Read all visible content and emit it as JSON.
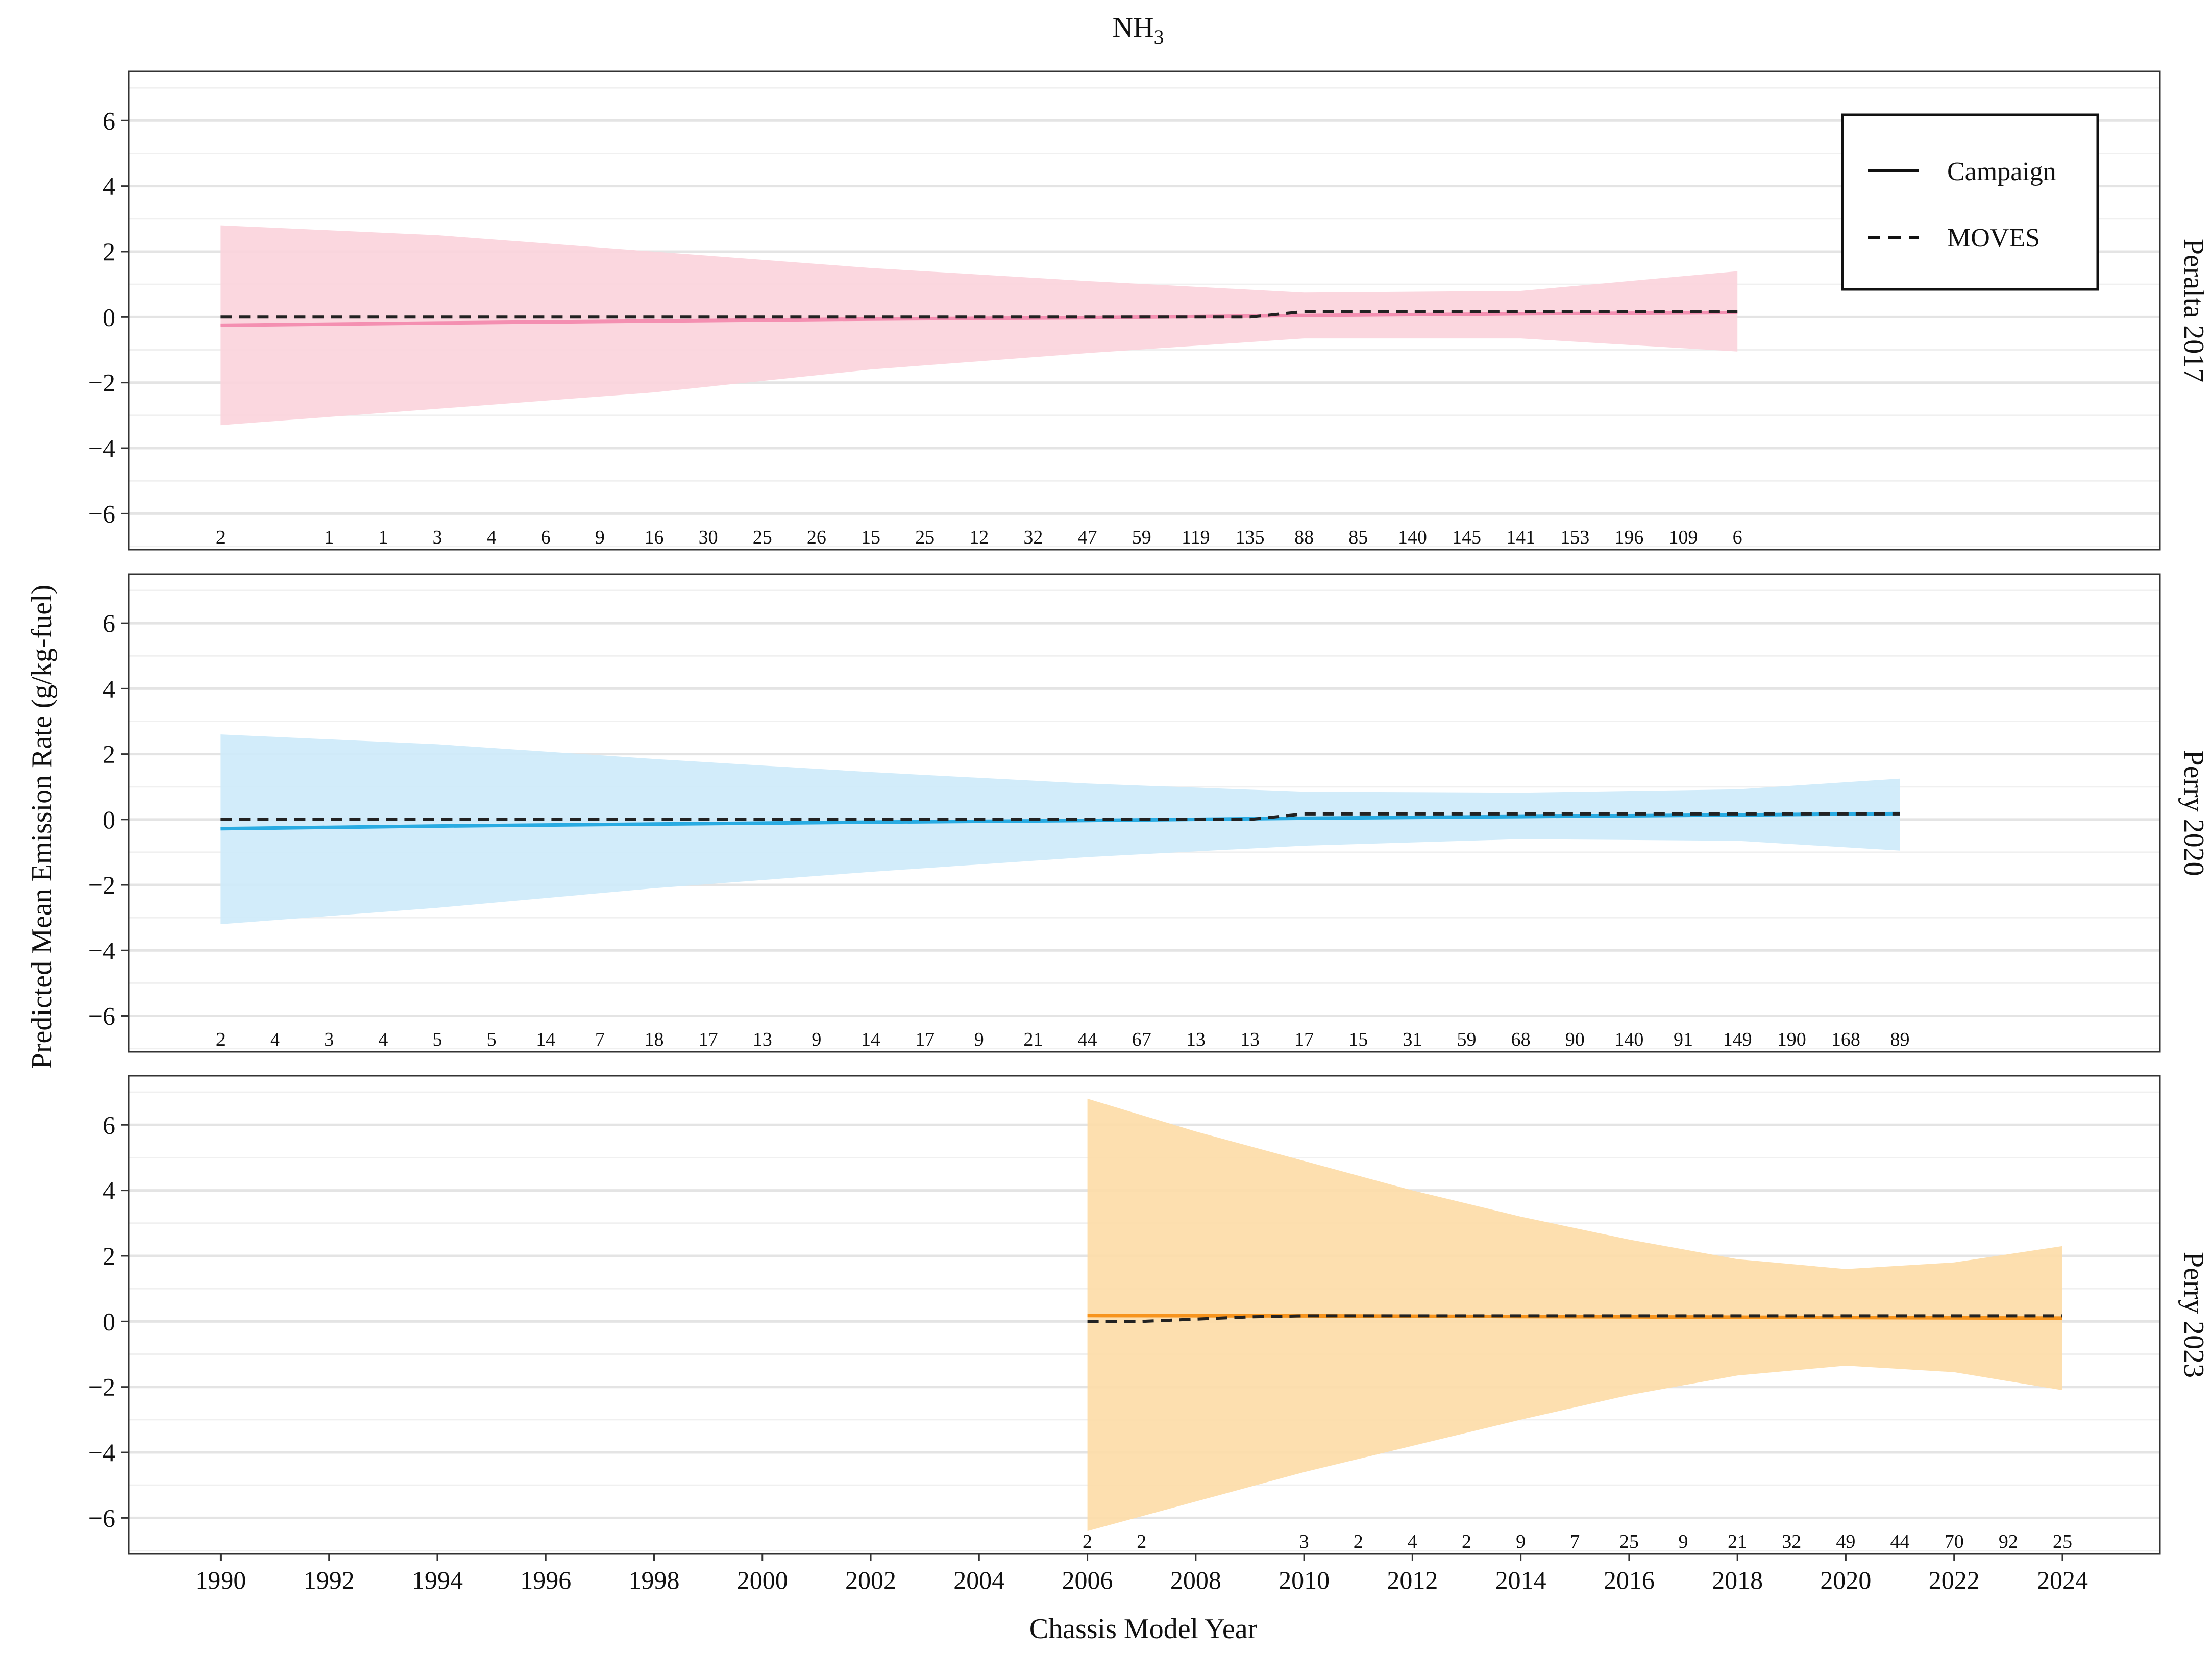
{
  "chart_data": {
    "type": "line",
    "title_main": "NH",
    "title_sub": "3",
    "xlabel": "Chassis Model Year",
    "ylabel": "Predicted Mean Emission Rate (g/kg-fuel)",
    "xlim": [
      1988.3,
      2025.8
    ],
    "ylim": [
      -7.1,
      7.5
    ],
    "x_ticks": [
      1990,
      1992,
      1994,
      1996,
      1998,
      2000,
      2002,
      2004,
      2006,
      2008,
      2010,
      2012,
      2014,
      2016,
      2018,
      2020,
      2022,
      2024
    ],
    "y_ticks": [
      6,
      4,
      2,
      0,
      -2,
      -4,
      -6
    ],
    "y_tick_labels": [
      "6",
      "4",
      "2",
      "0",
      "−2",
      "−4",
      "−6"
    ],
    "grid": true,
    "legend": {
      "position": "top-right",
      "entries": [
        {
          "label": "Campaign",
          "style": "solid"
        },
        {
          "label": "MOVES",
          "style": "dashed"
        }
      ]
    },
    "panels": [
      {
        "strip": "Peralta 2017",
        "color": "#f48fb1",
        "fill": "#fbd3dc",
        "campaign": {
          "x": [
            1990,
            1994,
            1998,
            2002,
            2006,
            2010,
            2014,
            2018
          ],
          "y": [
            -0.25,
            -0.18,
            -0.12,
            -0.06,
            -0.02,
            0.05,
            0.1,
            0.14
          ]
        },
        "upper": {
          "x": [
            1990,
            1994,
            1998,
            2002,
            2006,
            2010,
            2014,
            2018
          ],
          "y": [
            2.8,
            2.5,
            2.0,
            1.5,
            1.1,
            0.75,
            0.8,
            1.4
          ]
        },
        "lower": {
          "x": [
            1990,
            1994,
            1998,
            2002,
            2006,
            2010,
            2014,
            2018
          ],
          "y": [
            -3.3,
            -2.8,
            -2.3,
            -1.6,
            -1.1,
            -0.65,
            -0.65,
            -1.05
          ]
        },
        "moves": {
          "x": [
            1990,
            2009,
            2010,
            2018
          ],
          "y": [
            0.0,
            0.0,
            0.17,
            0.17
          ]
        },
        "counts": [
          {
            "x": 1990,
            "n": "2"
          },
          {
            "x": 1992,
            "n": "1"
          },
          {
            "x": 1993,
            "n": "1"
          },
          {
            "x": 1994,
            "n": "3"
          },
          {
            "x": 1995,
            "n": "4"
          },
          {
            "x": 1996,
            "n": "6"
          },
          {
            "x": 1997,
            "n": "9"
          },
          {
            "x": 1998,
            "n": "16"
          },
          {
            "x": 1999,
            "n": "30"
          },
          {
            "x": 2000,
            "n": "25"
          },
          {
            "x": 2001,
            "n": "26"
          },
          {
            "x": 2002,
            "n": "15"
          },
          {
            "x": 2003,
            "n": "25"
          },
          {
            "x": 2004,
            "n": "12"
          },
          {
            "x": 2005,
            "n": "32"
          },
          {
            "x": 2006,
            "n": "47"
          },
          {
            "x": 2007,
            "n": "59"
          },
          {
            "x": 2008,
            "n": "119"
          },
          {
            "x": 2009,
            "n": "135"
          },
          {
            "x": 2010,
            "n": "88"
          },
          {
            "x": 2011,
            "n": "85"
          },
          {
            "x": 2012,
            "n": "140"
          },
          {
            "x": 2013,
            "n": "145"
          },
          {
            "x": 2014,
            "n": "141"
          },
          {
            "x": 2015,
            "n": "153"
          },
          {
            "x": 2016,
            "n": "196"
          },
          {
            "x": 2017,
            "n": "109"
          },
          {
            "x": 2018,
            "n": "6"
          }
        ]
      },
      {
        "strip": "Perry 2020",
        "color": "#29abe2",
        "fill": "#cdeafa",
        "campaign": {
          "x": [
            1990,
            1994,
            1998,
            2002,
            2006,
            2010,
            2014,
            2018,
            2021
          ],
          "y": [
            -0.28,
            -0.2,
            -0.14,
            -0.08,
            -0.03,
            0.04,
            0.09,
            0.14,
            0.18
          ]
        },
        "upper": {
          "x": [
            1990,
            1994,
            1998,
            2002,
            2006,
            2010,
            2014,
            2018,
            2021
          ],
          "y": [
            2.6,
            2.3,
            1.85,
            1.45,
            1.1,
            0.85,
            0.82,
            0.92,
            1.25
          ]
        },
        "lower": {
          "x": [
            1990,
            1994,
            1998,
            2002,
            2006,
            2010,
            2014,
            2018,
            2021
          ],
          "y": [
            -3.2,
            -2.7,
            -2.1,
            -1.6,
            -1.15,
            -0.8,
            -0.6,
            -0.65,
            -0.95
          ]
        },
        "moves": {
          "x": [
            1990,
            2009,
            2010,
            2021
          ],
          "y": [
            0.0,
            0.0,
            0.17,
            0.17
          ]
        },
        "counts": [
          {
            "x": 1990,
            "n": "2"
          },
          {
            "x": 1991,
            "n": "4"
          },
          {
            "x": 1992,
            "n": "3"
          },
          {
            "x": 1993,
            "n": "4"
          },
          {
            "x": 1994,
            "n": "5"
          },
          {
            "x": 1995,
            "n": "5"
          },
          {
            "x": 1996,
            "n": "14"
          },
          {
            "x": 1997,
            "n": "7"
          },
          {
            "x": 1998,
            "n": "18"
          },
          {
            "x": 1999,
            "n": "17"
          },
          {
            "x": 2000,
            "n": "13"
          },
          {
            "x": 2001,
            "n": "9"
          },
          {
            "x": 2002,
            "n": "14"
          },
          {
            "x": 2003,
            "n": "17"
          },
          {
            "x": 2004,
            "n": "9"
          },
          {
            "x": 2005,
            "n": "21"
          },
          {
            "x": 2006,
            "n": "44"
          },
          {
            "x": 2007,
            "n": "67"
          },
          {
            "x": 2008,
            "n": "13"
          },
          {
            "x": 2009,
            "n": "13"
          },
          {
            "x": 2010,
            "n": "17"
          },
          {
            "x": 2011,
            "n": "15"
          },
          {
            "x": 2012,
            "n": "31"
          },
          {
            "x": 2013,
            "n": "59"
          },
          {
            "x": 2014,
            "n": "68"
          },
          {
            "x": 2015,
            "n": "90"
          },
          {
            "x": 2016,
            "n": "140"
          },
          {
            "x": 2017,
            "n": "91"
          },
          {
            "x": 2018,
            "n": "149"
          },
          {
            "x": 2019,
            "n": "190"
          },
          {
            "x": 2020,
            "n": "168"
          },
          {
            "x": 2021,
            "n": "89"
          }
        ]
      },
      {
        "strip": "Perry 2023",
        "color": "#f7941d",
        "fill": "#fddba6",
        "campaign": {
          "x": [
            2006,
            2010,
            2014,
            2018,
            2024
          ],
          "y": [
            0.18,
            0.17,
            0.15,
            0.13,
            0.1
          ]
        },
        "upper": {
          "x": [
            2006,
            2008,
            2010,
            2012,
            2014,
            2016,
            2018,
            2020,
            2022,
            2024
          ],
          "y": [
            6.8,
            5.8,
            4.9,
            4.0,
            3.2,
            2.5,
            1.9,
            1.6,
            1.8,
            2.3
          ]
        },
        "lower": {
          "x": [
            2006,
            2008,
            2010,
            2012,
            2014,
            2016,
            2018,
            2020,
            2022,
            2024
          ],
          "y": [
            -6.4,
            -5.5,
            -4.6,
            -3.8,
            -3.0,
            -2.25,
            -1.65,
            -1.35,
            -1.55,
            -2.1
          ]
        },
        "moves": {
          "x": [
            2006,
            2007,
            2009,
            2010,
            2024
          ],
          "y": [
            0.0,
            0.0,
            0.14,
            0.17,
            0.17
          ]
        },
        "counts": [
          {
            "x": 2006,
            "n": "2"
          },
          {
            "x": 2007,
            "n": "2"
          },
          {
            "x": 2010,
            "n": "3"
          },
          {
            "x": 2011,
            "n": "2"
          },
          {
            "x": 2012,
            "n": "4"
          },
          {
            "x": 2013,
            "n": "2"
          },
          {
            "x": 2014,
            "n": "9"
          },
          {
            "x": 2015,
            "n": "7"
          },
          {
            "x": 2016,
            "n": "25"
          },
          {
            "x": 2017,
            "n": "9"
          },
          {
            "x": 2018,
            "n": "21"
          },
          {
            "x": 2019,
            "n": "32"
          },
          {
            "x": 2020,
            "n": "49"
          },
          {
            "x": 2021,
            "n": "44"
          },
          {
            "x": 2022,
            "n": "70"
          },
          {
            "x": 2023,
            "n": "92"
          },
          {
            "x": 2024,
            "n": "25"
          }
        ]
      }
    ]
  }
}
